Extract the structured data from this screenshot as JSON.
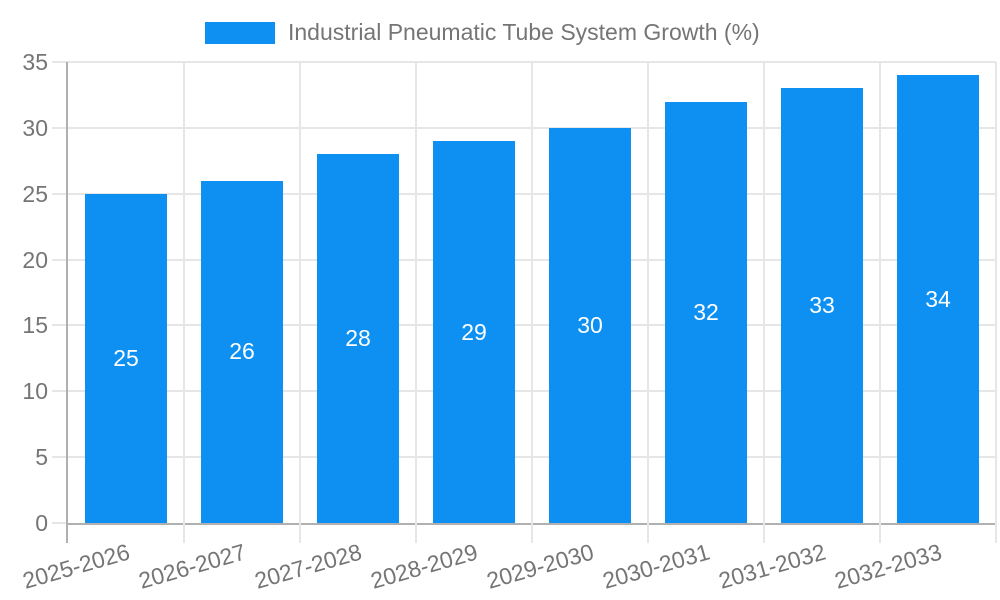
{
  "chart_data": {
    "type": "bar",
    "title": "",
    "xlabel": "",
    "ylabel": "",
    "legend": {
      "label": "Industrial Pneumatic Tube System Growth (%)",
      "position": "top"
    },
    "categories": [
      "2025-2026",
      "2026-2027",
      "2027-2028",
      "2028-2029",
      "2029-2030",
      "2030-2031",
      "2031-2032",
      "2032-2033"
    ],
    "values": [
      25,
      26,
      28,
      29,
      30,
      32,
      33,
      34
    ],
    "ylim": [
      0,
      35
    ],
    "yticks": [
      0,
      5,
      10,
      15,
      20,
      25,
      30,
      35
    ],
    "grid": true,
    "xtick_rotation_deg": -16,
    "value_labels_inside_bars": true,
    "colors": {
      "bar": "#0d90f2",
      "value_label": "#ffffff",
      "axis_text": "#757575",
      "axis_line": "#b0b0b0",
      "gridline": "#e6e6e6",
      "background": "#ffffff"
    }
  }
}
